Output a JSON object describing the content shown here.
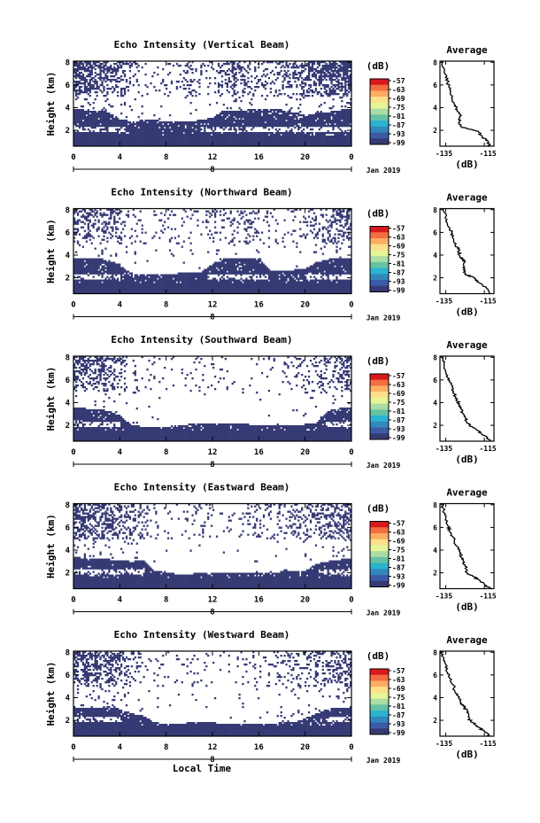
{
  "chart_data": {
    "type": "heatmap",
    "common": {
      "x_ticks": [
        "0",
        "4",
        "8",
        "12",
        "16",
        "20",
        "0"
      ],
      "x_range": [
        0,
        24
      ],
      "y_ticks": [
        "2",
        "4",
        "6",
        "8"
      ],
      "y_range": [
        0.6,
        8.1
      ],
      "day_label": "8",
      "date_label": "Jan 2019",
      "xlabel": "Local Time",
      "ylabel": "Height (km)",
      "colorbar_unit": "(dB)",
      "colorbar_ticks": [
        "-57",
        "-63",
        "-69",
        "-75",
        "-81",
        "-87",
        "-93",
        "-99"
      ],
      "colorbar_range": [
        -99,
        -57
      ],
      "avg_title": "Average",
      "avg_xlabel": "(dB)",
      "avg_xticks": [
        "-135",
        "-115"
      ],
      "avg_xrange": [
        -138,
        -110
      ],
      "avg_yrange": [
        0.6,
        8.1
      ],
      "avg_yticks": [
        "2",
        "4",
        "6",
        "8"
      ]
    },
    "panels": [
      {
        "title": "Echo Intensity (Vertical Beam)",
        "low_band_top": [
          3.9,
          3.8,
          3.8,
          3.6,
          3.0,
          2.8,
          2.9,
          2.9,
          2.8,
          2.8,
          2.8,
          2.9,
          3.1,
          3.8,
          3.8,
          3.8,
          3.9,
          3.9,
          3.8,
          3.6,
          3.4,
          3.5,
          3.6,
          3.8,
          3.9
        ],
        "upper_cover": [
          0.9,
          0.8,
          0.7,
          0.6,
          0.4,
          0.2,
          0.1,
          0.1,
          0.1,
          0.2,
          0.3,
          0.2,
          0.1,
          0.4,
          0.5,
          0.3,
          0.2,
          0.2,
          0.3,
          0.4,
          0.5,
          0.7,
          0.8,
          0.8,
          0.9
        ],
        "average": [
          [
            -112,
            0.6
          ],
          [
            -113,
            1.0
          ],
          [
            -116,
            1.4
          ],
          [
            -118,
            1.9
          ],
          [
            -123,
            2.1
          ],
          [
            -127,
            2.3
          ],
          [
            -128,
            2.8
          ],
          [
            -127,
            3.3
          ],
          [
            -129,
            3.8
          ],
          [
            -130,
            4.2
          ],
          [
            -132,
            4.9
          ],
          [
            -133,
            5.6
          ],
          [
            -134,
            6.2
          ],
          [
            -135,
            6.9
          ],
          [
            -136,
            7.5
          ],
          [
            -137,
            8.1
          ]
        ]
      },
      {
        "title": "Echo Intensity (Northward Beam)",
        "low_band_top": [
          3.8,
          3.8,
          3.7,
          3.6,
          3.1,
          2.4,
          2.3,
          2.3,
          2.3,
          2.4,
          2.4,
          2.5,
          3.2,
          3.7,
          3.7,
          3.8,
          3.8,
          2.6,
          2.6,
          2.7,
          2.8,
          3.4,
          3.6,
          3.7,
          3.8
        ],
        "upper_cover": [
          0.5,
          0.4,
          0.4,
          0.5,
          0.3,
          0.15,
          0.1,
          0.1,
          0.1,
          0.1,
          0.1,
          0.1,
          0.3,
          0.2,
          0.2,
          0.3,
          0.2,
          0.1,
          0.1,
          0.1,
          0.2,
          0.3,
          0.4,
          0.5,
          0.5
        ],
        "average": [
          [
            -112,
            0.6
          ],
          [
            -114,
            1.1
          ],
          [
            -118,
            1.6
          ],
          [
            -120,
            2.0
          ],
          [
            -125,
            2.3
          ],
          [
            -126,
            2.9
          ],
          [
            -125,
            3.4
          ],
          [
            -127,
            3.7
          ],
          [
            -128,
            4.0
          ],
          [
            -128,
            4.5
          ],
          [
            -130,
            4.8
          ],
          [
            -131,
            5.4
          ],
          [
            -132,
            6.0
          ],
          [
            -134,
            6.6
          ],
          [
            -135,
            7.4
          ],
          [
            -136,
            8.1
          ]
        ]
      },
      {
        "title": "Echo Intensity (Southward Beam)",
        "low_band_top": [
          3.6,
          3.5,
          3.4,
          3.3,
          2.9,
          2.0,
          1.9,
          1.9,
          1.9,
          2.0,
          2.1,
          2.1,
          2.2,
          2.2,
          2.1,
          2.1,
          2.0,
          2.0,
          2.0,
          2.0,
          2.1,
          2.2,
          3.3,
          3.5,
          3.6
        ],
        "upper_cover": [
          0.6,
          0.5,
          0.5,
          0.5,
          0.3,
          0.1,
          0.1,
          0.1,
          0.05,
          0.05,
          0.05,
          0.1,
          0.1,
          0.05,
          0.05,
          0.05,
          0.05,
          0.05,
          0.1,
          0.1,
          0.2,
          0.2,
          0.3,
          0.4,
          0.5
        ],
        "average": [
          [
            -112,
            0.6
          ],
          [
            -115,
            1.1
          ],
          [
            -118,
            1.5
          ],
          [
            -121,
            1.8
          ],
          [
            -124,
            2.2
          ],
          [
            -125,
            2.7
          ],
          [
            -126,
            3.0
          ],
          [
            -127,
            3.5
          ],
          [
            -128,
            3.9
          ],
          [
            -130,
            4.4
          ],
          [
            -131,
            5.0
          ],
          [
            -132,
            5.7
          ],
          [
            -134,
            6.2
          ],
          [
            -135,
            6.8
          ],
          [
            -136,
            7.5
          ],
          [
            -137,
            8.1
          ]
        ]
      },
      {
        "title": "Echo Intensity (Eastward Beam)",
        "low_band_top": [
          3.4,
          3.3,
          3.2,
          3.2,
          3.1,
          3.0,
          3.1,
          2.2,
          2.0,
          1.9,
          1.9,
          2.0,
          2.0,
          2.0,
          2.0,
          2.0,
          2.0,
          2.0,
          2.1,
          2.1,
          2.2,
          2.8,
          3.0,
          3.2,
          3.3
        ],
        "upper_cover": [
          0.7,
          0.6,
          0.6,
          0.6,
          0.5,
          0.3,
          0.2,
          0.1,
          0.05,
          0.05,
          0.1,
          0.1,
          0.05,
          0.05,
          0.05,
          0.1,
          0.2,
          0.2,
          0.2,
          0.3,
          0.3,
          0.3,
          0.4,
          0.5,
          0.6
        ],
        "average": [
          [
            -112,
            0.6
          ],
          [
            -115,
            1.0
          ],
          [
            -118,
            1.4
          ],
          [
            -121,
            1.7
          ],
          [
            -124,
            2.0
          ],
          [
            -125,
            2.6
          ],
          [
            -126,
            3.1
          ],
          [
            -127,
            3.4
          ],
          [
            -128,
            3.9
          ],
          [
            -130,
            4.5
          ],
          [
            -131,
            5.1
          ],
          [
            -133,
            5.7
          ],
          [
            -134,
            6.2
          ],
          [
            -135,
            6.9
          ],
          [
            -136,
            7.5
          ],
          [
            -137,
            8.1
          ]
        ]
      },
      {
        "title": "Echo Intensity (Westward Beam)",
        "low_band_top": [
          3.2,
          3.1,
          3.1,
          3.2,
          3.0,
          2.6,
          2.4,
          1.8,
          1.7,
          1.7,
          1.8,
          1.8,
          1.8,
          1.7,
          1.7,
          1.7,
          1.7,
          1.7,
          1.8,
          1.8,
          2.2,
          2.6,
          3.0,
          3.1,
          3.2
        ],
        "upper_cover": [
          0.6,
          0.6,
          0.6,
          0.6,
          0.5,
          0.3,
          0.1,
          0.1,
          0.05,
          0.05,
          0.1,
          0.05,
          0.05,
          0.05,
          0.05,
          0.1,
          0.1,
          0.1,
          0.2,
          0.3,
          0.3,
          0.3,
          0.4,
          0.5,
          0.6
        ],
        "average": [
          [
            -112,
            0.6
          ],
          [
            -115,
            1.0
          ],
          [
            -118,
            1.4
          ],
          [
            -121,
            1.8
          ],
          [
            -123,
            2.1
          ],
          [
            -124,
            2.7
          ],
          [
            -125,
            3.1
          ],
          [
            -127,
            3.5
          ],
          [
            -128,
            3.9
          ],
          [
            -130,
            4.4
          ],
          [
            -131,
            5.1
          ],
          [
            -133,
            5.7
          ],
          [
            -134,
            6.2
          ],
          [
            -135,
            6.9
          ],
          [
            -136,
            7.5
          ],
          [
            -137,
            8.1
          ]
        ]
      }
    ]
  }
}
